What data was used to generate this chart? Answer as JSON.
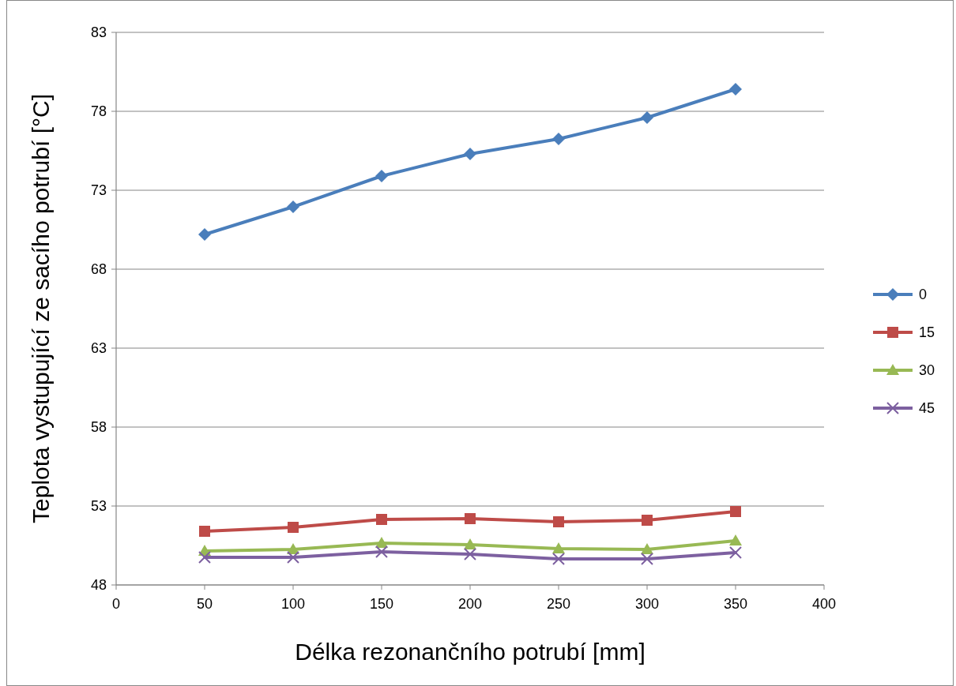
{
  "chart_data": {
    "type": "line",
    "xlabel": "Délka rezonančního potrubí [mm]",
    "ylabel": "Teplota vystupující ze sacího potrubí [°C]",
    "x": [
      50,
      100,
      150,
      200,
      250,
      300,
      350
    ],
    "xlim": [
      0,
      400
    ],
    "xticks": [
      0,
      50,
      100,
      150,
      200,
      250,
      300,
      350,
      400
    ],
    "ylim": [
      48,
      83
    ],
    "yticks": [
      48,
      53,
      58,
      63,
      68,
      73,
      78,
      83
    ],
    "grid": "y",
    "legend": "right",
    "series": [
      {
        "name": "0",
        "color": "#4a7ebb",
        "marker": "diamond",
        "values": [
          70.2,
          71.95,
          73.9,
          75.3,
          76.25,
          77.6,
          79.4
        ]
      },
      {
        "name": "15",
        "color": "#be4b48",
        "marker": "square",
        "values": [
          51.4,
          51.65,
          52.15,
          52.2,
          52.0,
          52.1,
          52.65
        ]
      },
      {
        "name": "30",
        "color": "#98b954",
        "marker": "triangle",
        "values": [
          50.15,
          50.25,
          50.65,
          50.55,
          50.3,
          50.25,
          50.8
        ]
      },
      {
        "name": "45",
        "color": "#7d60a0",
        "marker": "cross",
        "values": [
          49.75,
          49.75,
          50.1,
          49.95,
          49.65,
          49.65,
          50.05
        ]
      }
    ]
  }
}
